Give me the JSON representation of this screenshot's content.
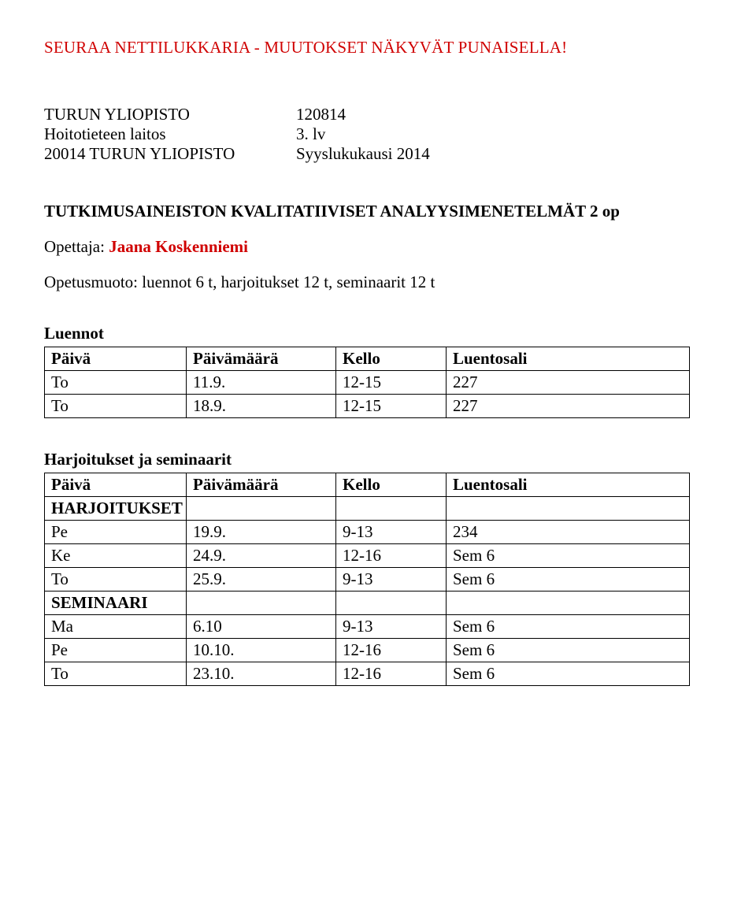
{
  "heading": "SEURAA NETTILUKKARIA - MUUTOKSET NÄKYVÄT PUNAISELLA!",
  "info": {
    "rows": [
      {
        "left": "TURUN YLIOPISTO",
        "right": "120814"
      },
      {
        "left": "Hoitotieteen laitos",
        "right": "3. lv"
      },
      {
        "left": "20014 TURUN YLIOPISTO",
        "right": "Syyslukukausi 2014"
      }
    ]
  },
  "course_title": "TUTKIMUSAINEISTON KVALITATIIVISET ANALYYSIMENETELMÄT 2 op",
  "teacher_label": "Opettaja:",
  "teacher_name": "Jaana Koskenniemi",
  "form_line": "Opetusmuoto: luennot 6 t, harjoitukset 12 t, seminaarit 12 t",
  "luennot": {
    "title": "Luennot",
    "headers": [
      "Päivä",
      "Päivämäärä",
      "Kello",
      "Luentosali"
    ],
    "rows": [
      [
        "To",
        "11.9.",
        "12-15",
        "227"
      ],
      [
        "To",
        "18.9.",
        "12-15",
        "227"
      ]
    ]
  },
  "harjo_seminaari": {
    "title": "Harjoitukset ja seminaarit",
    "headers": [
      "Päivä",
      "Päivämäärä",
      "Kello",
      "Luentosali"
    ],
    "rows": [
      {
        "cells": [
          "HARJOITUKSET",
          "",
          "",
          ""
        ],
        "head": true
      },
      {
        "cells": [
          "Pe",
          "19.9.",
          "9-13",
          "234"
        ]
      },
      {
        "cells": [
          "Ke",
          "24.9.",
          "12-16",
          "Sem 6"
        ]
      },
      {
        "cells": [
          "To",
          "25.9.",
          "9-13",
          "Sem 6"
        ]
      },
      {
        "cells": [
          "SEMINAARI",
          "",
          "",
          ""
        ],
        "head": true
      },
      {
        "cells": [
          "Ma",
          "6.10",
          "9-13",
          "Sem 6"
        ]
      },
      {
        "cells": [
          "Pe",
          "10.10.",
          "12-16",
          "Sem 6"
        ]
      },
      {
        "cells": [
          "To",
          "23.10.",
          "12-16",
          "Sem 6"
        ]
      }
    ]
  },
  "colors": {
    "red": "#d00000",
    "text": "#000000",
    "background": "#ffffff",
    "border": "#000000"
  },
  "typography": {
    "font_family": "Times New Roman",
    "base_size_pt": 16
  }
}
